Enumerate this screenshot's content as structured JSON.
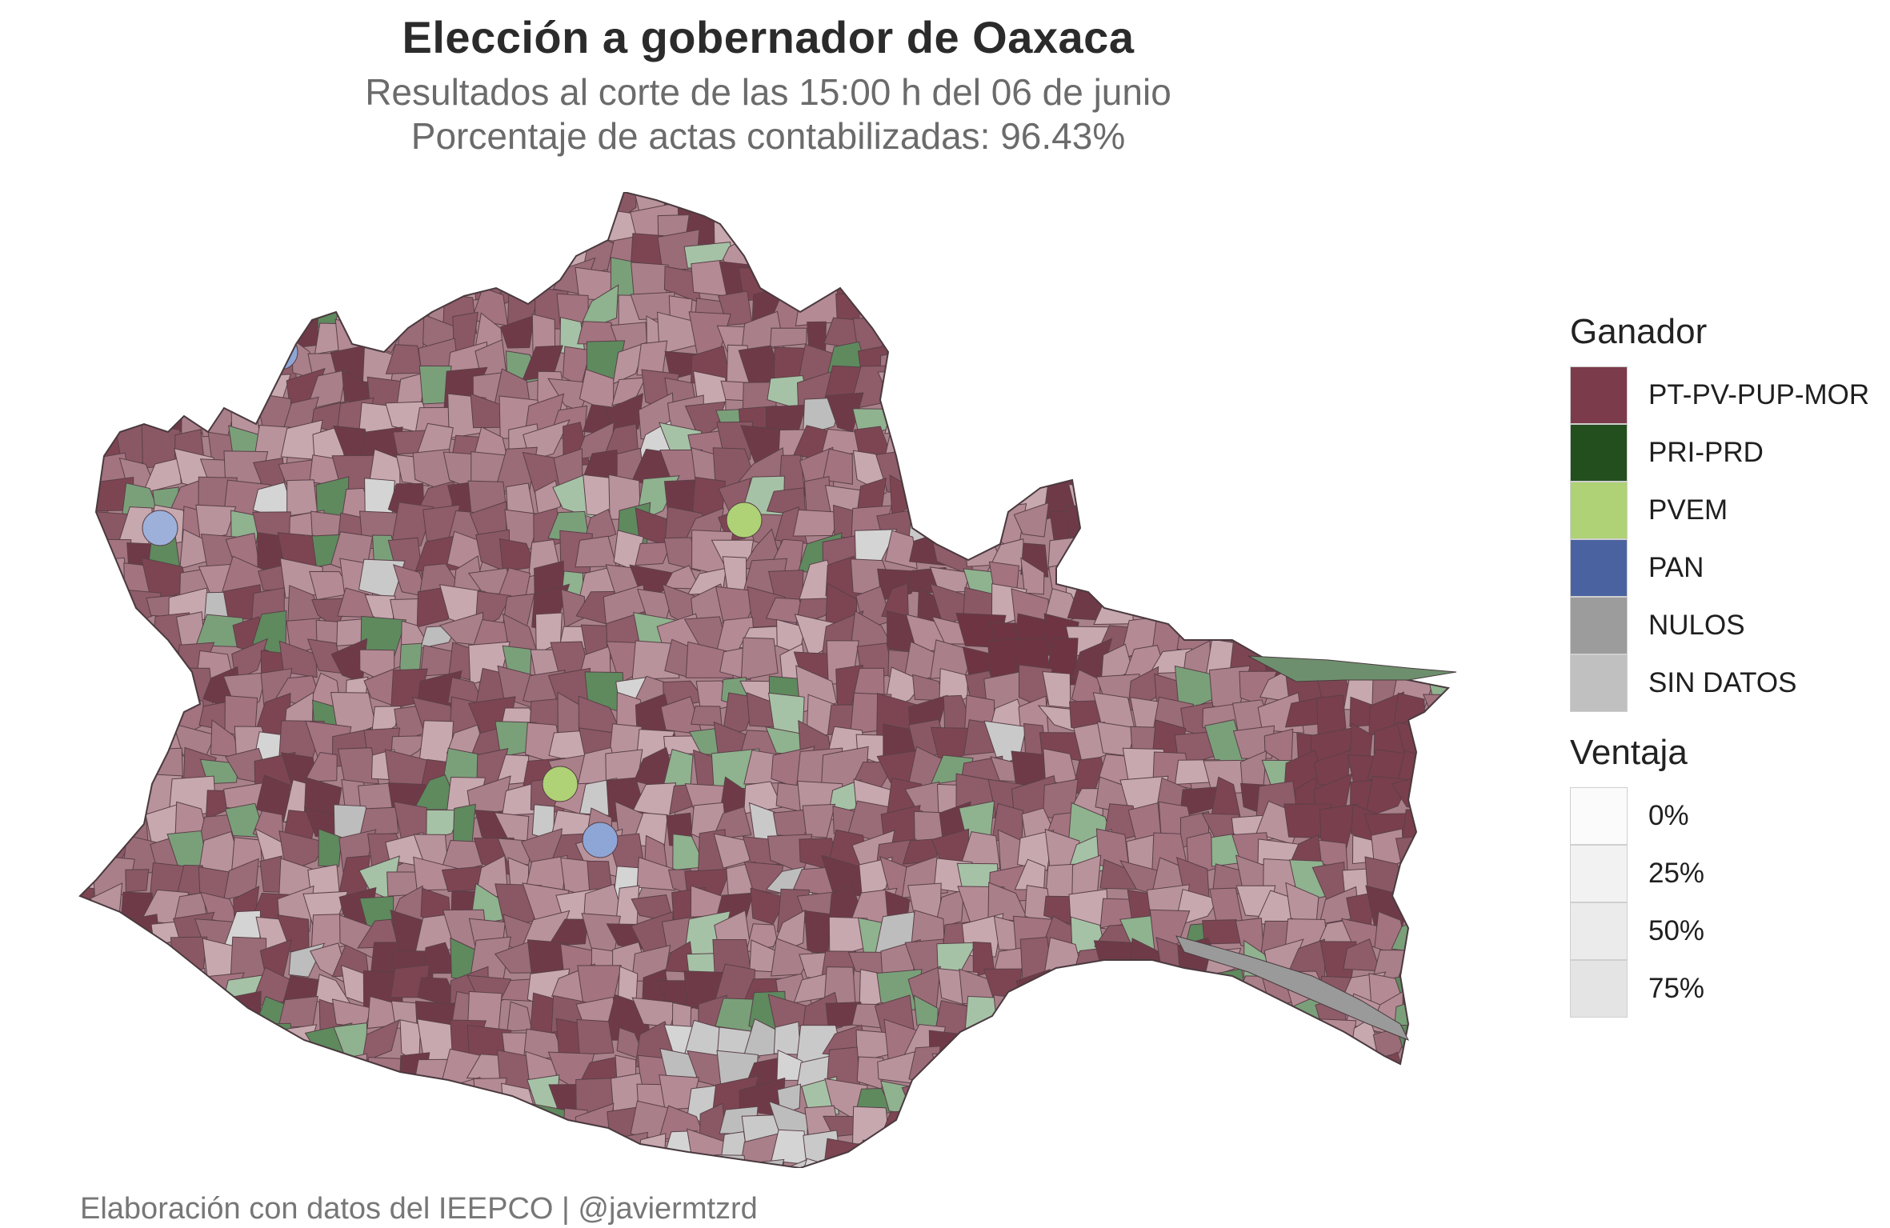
{
  "title": "Elección a gobernador de Oaxaca",
  "subtitle_line1": "Resultados al corte de las 15:00 h del 06 de junio",
  "subtitle_line2": "Porcentaje de actas contabilizadas: 96.43%",
  "caption": "Elaboración con datos del IEEPCO | @javiermtzrd",
  "legend": {
    "winner_title": "Ganador",
    "winner_items": [
      {
        "label": "PT-PV-PUP-MOR",
        "color": "#7b3b4a"
      },
      {
        "label": "PRI-PRD",
        "color": "#234f1e"
      },
      {
        "label": "PVEM",
        "color": "#aed275"
      },
      {
        "label": "PAN",
        "color": "#4a63a0"
      },
      {
        "label": "NULOS",
        "color": "#9c9c9c"
      },
      {
        "label": "SIN DATOS",
        "color": "#c0c0c0"
      }
    ],
    "margin_title": "Ventaja",
    "margin_items": [
      {
        "label": "0%",
        "color": "#fbfbfb"
      },
      {
        "label": "25%",
        "color": "#f2f2f2"
      },
      {
        "label": "50%",
        "color": "#ebebeb"
      },
      {
        "label": "75%",
        "color": "#e4e4e4"
      }
    ]
  }
}
